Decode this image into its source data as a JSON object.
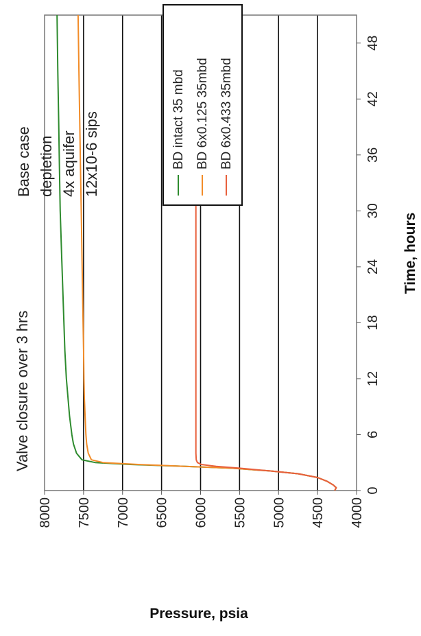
{
  "chart_data": {
    "type": "line",
    "title": "",
    "xlabel": "Time, hours",
    "ylabel": "Pressure, psia",
    "xlim": [
      0,
      51
    ],
    "ylim": [
      4000,
      8000
    ],
    "x_ticks": [
      0,
      6,
      12,
      18,
      24,
      30,
      36,
      42,
      48
    ],
    "y_ticks": [
      4000,
      4500,
      5000,
      5500,
      6000,
      6500,
      7000,
      7500,
      8000
    ],
    "grid": "horizontal",
    "legend_position": "top-right",
    "annotations": {
      "valve_note": "Valve closure over 3 hrs",
      "case_lines": [
        "Base case",
        "depletion",
        "4x aquifer",
        "12x10-6 sips"
      ]
    },
    "series": [
      {
        "name": "BD intact 35 mbd",
        "color": "#2e8b2e",
        "x": [
          0,
          0.3,
          0.6,
          1.0,
          1.4,
          1.8,
          2.1,
          2.4,
          2.6,
          2.8,
          3.0,
          3.3,
          4,
          5,
          6,
          8,
          10,
          12,
          15,
          20,
          25,
          30,
          35,
          40,
          45,
          51
        ],
        "y": [
          4280,
          4260,
          4300,
          4380,
          4500,
          4750,
          5100,
          5600,
          6200,
          6900,
          7350,
          7520,
          7590,
          7630,
          7650,
          7680,
          7700,
          7720,
          7740,
          7760,
          7780,
          7800,
          7810,
          7820,
          7830,
          7840
        ]
      },
      {
        "name": "BD 6x0.125 35mbd",
        "color": "#f28c28",
        "x": [
          0,
          0.3,
          0.6,
          1.0,
          1.4,
          1.8,
          2.1,
          2.4,
          2.6,
          2.8,
          3.0,
          3.3,
          4,
          5,
          6,
          8,
          10,
          12,
          15,
          20,
          25,
          30,
          35,
          40,
          45,
          51
        ],
        "y": [
          4280,
          4260,
          4300,
          4380,
          4500,
          4750,
          5100,
          5600,
          6200,
          6800,
          7250,
          7400,
          7440,
          7460,
          7470,
          7480,
          7490,
          7495,
          7500,
          7510,
          7520,
          7530,
          7540,
          7550,
          7560,
          7570
        ]
      },
      {
        "name": "BD 6x0.433 35mbd",
        "color": "#e8603c",
        "x": [
          0,
          0.3,
          0.6,
          1.0,
          1.4,
          1.8,
          2.1,
          2.4,
          2.6,
          2.8,
          3.0,
          3.3,
          4,
          6,
          10,
          20,
          30,
          40,
          51
        ],
        "y": [
          4280,
          4260,
          4300,
          4380,
          4500,
          4750,
          5100,
          5500,
          5800,
          5990,
          6040,
          6055,
          6060,
          6060,
          6060,
          6060,
          6060,
          6060,
          6060
        ]
      }
    ]
  }
}
